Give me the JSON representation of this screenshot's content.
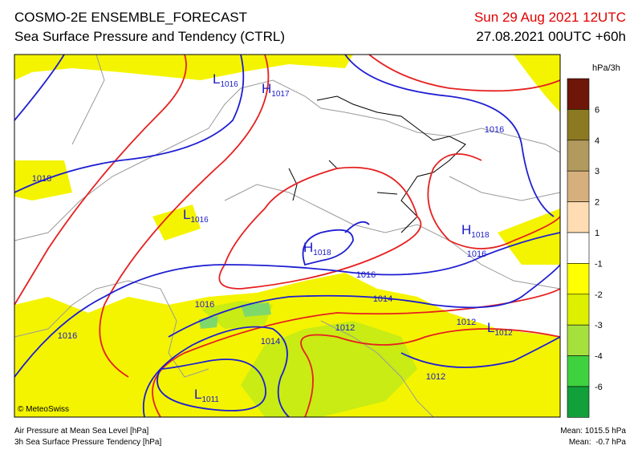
{
  "header": {
    "title": "COSMO-2E ENSEMBLE_FORECAST",
    "subtitle": "Sea Surface Pressure and Tendency (CTRL)",
    "valid_time": "Sun 29 Aug 2021 12UTC",
    "run_time": "27.08.2021 00UTC +60h"
  },
  "map": {
    "centers": [
      {
        "letter": "L",
        "value": 1016
      },
      {
        "letter": "H",
        "value": 1017
      },
      {
        "letter": "L",
        "value": 1016
      },
      {
        "letter": "H",
        "value": 1018
      },
      {
        "letter": "H",
        "value": 1018
      },
      {
        "letter": "L",
        "value": 1012
      },
      {
        "letter": "L",
        "value": 1011
      }
    ],
    "isobar_labels": [
      1016,
      1018,
      1016,
      1016,
      1016,
      1014,
      1016,
      1014,
      1012,
      1012,
      1012
    ],
    "copyright": "© MeteoSwiss"
  },
  "legend": {
    "title": "hPa/3h",
    "ticks": [
      6,
      4,
      3,
      2,
      1,
      -1,
      -2,
      -3,
      -4,
      -6
    ],
    "colors": [
      "#6e1608",
      "#8c7a22",
      "#b29a5e",
      "#d6b07c",
      "#ffdcb4",
      "#ffffff",
      "#ffff00",
      "#dcf000",
      "#a6e03c",
      "#3ed23e",
      "#12a03a"
    ]
  },
  "footer": {
    "left_1": "Air Pressure at Mean Sea Level [hPa]",
    "left_2": "3h Sea Surface Pressure Tendency [hPa]",
    "right_1": "Mean: 1015.5 hPa",
    "right_2": "Mean:  -0.7 hPa"
  }
}
